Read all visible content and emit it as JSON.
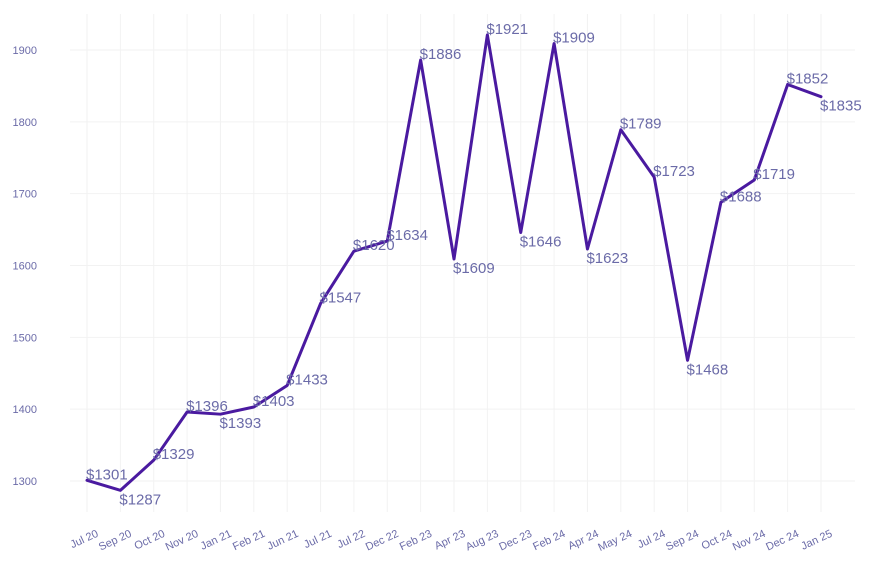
{
  "chart_data": {
    "type": "line",
    "categories": [
      "Jul 20",
      "Sep 20",
      "Oct 20",
      "Nov 20",
      "Jan 21",
      "Feb 21",
      "Jun 21",
      "Jul 21",
      "Jul 22",
      "Dec 22",
      "Feb 23",
      "Apr 23",
      "Aug 23",
      "Dec 23",
      "Feb 24",
      "Apr 24",
      "May 24",
      "Jul 24",
      "Sep 24",
      "Oct 24",
      "Nov 24",
      "Dec 24",
      "Jan 25"
    ],
    "values": [
      1301,
      1287,
      1329,
      1396,
      1393,
      1403,
      1433,
      1547,
      1620,
      1634,
      1886,
      1609,
      1921,
      1646,
      1909,
      1623,
      1789,
      1723,
      1468,
      1688,
      1719,
      1852,
      1835
    ],
    "data_labels": [
      "$1301",
      "$1287",
      "$1329",
      "$1396",
      "$1393",
      "$1403",
      "$1433",
      "$1547",
      "$1620",
      "$1634",
      "$1886",
      "$1609",
      "$1921",
      "$1646",
      "$1909",
      "$1623",
      "$1789",
      "$1723",
      "$1468",
      "$1688",
      "$1719",
      "$1852",
      "$1835"
    ],
    "y_ticks": [
      1300,
      1400,
      1500,
      1600,
      1700,
      1800,
      1900
    ],
    "ylim": [
      1250,
      1950
    ],
    "line_color": "#4a1aa0",
    "grid": true,
    "title": "",
    "xlabel": "",
    "ylabel": ""
  }
}
